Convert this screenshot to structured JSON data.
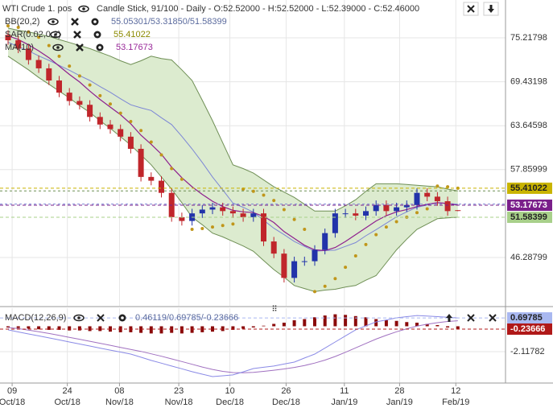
{
  "chart_data": [
    {
      "type": "candlestick",
      "title": "WTI Crude 1. pos",
      "subtitle": "Candle Stick, 91/100 - Daily - O:52.52000 - H:52.52000 - L:52.39000 - C:52.46000",
      "indicators": [
        {
          "name": "BB(20,2)",
          "label": "55.05301/53.31850/51.58399",
          "color": "#5b6b9e"
        },
        {
          "name": "SAR(0.02,0.2)",
          "label": "55.41022",
          "color": "#8c8a00"
        },
        {
          "name": "MA(10)",
          "label": "53.17673",
          "color": "#9a2a9a"
        }
      ],
      "ylim": [
        39.93,
        80.2
      ],
      "yticks": [
        46.28799,
        57.85999,
        63.64598,
        69.43198,
        75.21798
      ],
      "grid": true,
      "up_color": "#2233aa",
      "down_color": "#c0262b",
      "open": [
        75.6,
        74.9,
        73.8,
        72.3,
        71.2,
        69.6,
        68.0,
        66.9,
        66.4,
        64.8,
        63.8,
        63.2,
        62.2,
        60.6,
        56.9,
        56.4,
        54.8,
        51.6,
        51.1,
        52.1,
        52.6,
        52.9,
        52.4,
        52.1,
        51.6,
        52.1,
        48.4,
        46.8,
        43.6,
        45.8,
        45.8,
        47.3,
        49.5,
        52.1,
        52.1,
        51.8,
        52.4,
        53.2,
        52.4,
        52.9,
        53.2,
        54.8,
        54.3,
        53.7,
        52.52
      ],
      "high": [
        76.2,
        75.5,
        74.4,
        72.9,
        71.8,
        70.2,
        68.6,
        67.5,
        67.0,
        65.4,
        64.4,
        63.8,
        62.8,
        61.2,
        57.5,
        57.0,
        55.4,
        52.2,
        52.7,
        53.2,
        53.5,
        53.5,
        53.0,
        52.7,
        52.7,
        52.7,
        49.0,
        47.4,
        46.4,
        46.4,
        47.9,
        50.1,
        52.7,
        52.7,
        52.7,
        53.0,
        53.8,
        53.8,
        53.5,
        53.8,
        55.4,
        55.4,
        54.9,
        54.3,
        52.52
      ],
      "low": [
        74.3,
        73.2,
        71.7,
        70.6,
        69.0,
        67.4,
        66.3,
        65.8,
        64.2,
        63.2,
        62.6,
        61.6,
        60.0,
        56.3,
        55.8,
        54.2,
        51.0,
        50.5,
        50.5,
        51.5,
        52.0,
        51.8,
        51.5,
        51.0,
        51.0,
        47.8,
        46.2,
        43.0,
        43.0,
        45.2,
        45.2,
        46.7,
        48.9,
        51.5,
        51.2,
        51.2,
        51.8,
        51.8,
        51.8,
        52.3,
        52.6,
        53.7,
        53.1,
        51.8,
        52.39
      ],
      "close": [
        74.9,
        73.8,
        72.3,
        71.2,
        69.6,
        68.0,
        66.9,
        66.4,
        64.8,
        63.8,
        63.2,
        62.2,
        60.6,
        56.9,
        56.4,
        54.8,
        51.6,
        51.1,
        52.1,
        52.6,
        52.9,
        52.4,
        52.1,
        51.6,
        52.1,
        48.4,
        46.8,
        43.6,
        45.8,
        45.8,
        47.3,
        49.5,
        52.1,
        52.1,
        51.8,
        52.4,
        53.2,
        52.4,
        52.9,
        53.2,
        54.8,
        54.3,
        53.7,
        52.4,
        52.46
      ],
      "bb_upper": [
        76.5,
        76.2,
        76.0,
        75.7,
        75.4,
        75.0,
        74.6,
        74.2,
        73.8,
        73.3,
        72.8,
        72.2,
        71.7,
        72.2,
        72.8,
        72.5,
        72.3,
        71.0,
        69.6,
        67.0,
        64.3,
        61.4,
        58.5,
        58.0,
        57.4,
        56.5,
        55.6,
        54.9,
        54.2,
        53.3,
        52.4,
        52.4,
        52.4,
        53.1,
        53.9,
        55.0,
        56.0,
        56.0,
        56.0,
        55.9,
        55.8,
        55.7,
        55.6,
        55.3,
        55.05301
      ],
      "bb_middle": [
        74.65,
        74.05,
        73.5,
        72.85,
        72.25,
        71.6,
        70.95,
        70.25,
        69.6,
        68.8,
        68.05,
        67.2,
        66.4,
        66.0,
        65.65,
        64.7,
        63.8,
        62.25,
        60.6,
        58.8,
        56.9,
        55.2,
        53.45,
        52.9,
        52.25,
        51.2,
        50.15,
        49.3,
        48.4,
        47.75,
        47.1,
        47.2,
        47.25,
        47.75,
        48.25,
        49.15,
        49.95,
        50.8,
        51.65,
        52.3,
        52.9,
        53.2,
        53.5,
        53.4,
        53.3185
      ],
      "bb_lower": [
        72.8,
        71.9,
        71.0,
        70.0,
        69.1,
        68.2,
        67.3,
        66.3,
        65.4,
        64.3,
        63.3,
        62.2,
        61.1,
        59.8,
        58.5,
        56.9,
        55.3,
        53.5,
        51.6,
        50.6,
        49.5,
        49.0,
        48.4,
        47.8,
        47.1,
        45.9,
        44.7,
        43.7,
        42.6,
        42.2,
        41.8,
        42.0,
        42.1,
        42.4,
        42.6,
        43.3,
        43.9,
        45.6,
        47.3,
        48.7,
        50.0,
        50.7,
        51.4,
        51.5,
        51.58399
      ],
      "bb_fill": "#dcebcf",
      "bb_line": "#6f8f55",
      "bb_mid_color": "#7c86d6",
      "ma": [
        75.5,
        75.0,
        74.3,
        73.5,
        72.6,
        71.5,
        70.4,
        69.4,
        68.2,
        67.1,
        66.1,
        65.1,
        63.9,
        62.4,
        61.2,
        59.9,
        58.2,
        56.8,
        55.6,
        54.6,
        53.7,
        53.0,
        52.5,
        52.3,
        52.2,
        51.7,
        50.9,
        49.7,
        48.8,
        47.9,
        47.3,
        47.2,
        47.6,
        48.4,
        49.3,
        50.2,
        51.1,
        51.8,
        52.3,
        52.6,
        53.0,
        53.3,
        53.5,
        53.4,
        53.17673
      ],
      "ma_color": "#8e1f8e",
      "sar": [
        76.8,
        76.6,
        76.0,
        75.3,
        74.2,
        72.8,
        71.5,
        70.2,
        69.0,
        67.6,
        66.5,
        65.3,
        64.2,
        63.0,
        61.5,
        59.8,
        58.0,
        56.6,
        50.0,
        50.1,
        50.3,
        50.5,
        50.7,
        55.3,
        55.0,
        54.5,
        53.8,
        52.6,
        51.3,
        50.0,
        41.8,
        42.5,
        43.5,
        45.0,
        46.5,
        48.0,
        49.3,
        50.3,
        51.0,
        51.6,
        52.2,
        52.7,
        55.7,
        55.6,
        55.41022
      ],
      "sar_color": "#c0961a",
      "price_labels": [
        {
          "value": 55.41022,
          "color": "#c9b400",
          "text_color": "#222"
        },
        {
          "value": 53.17673,
          "color": "#7a1f8a",
          "text_color": "#fff"
        },
        {
          "value": 51.58399,
          "color": "#a8d08a",
          "text_color": "#222"
        }
      ]
    },
    {
      "type": "macd",
      "title": "MACD(12,26,9)",
      "label": "0.46119/0.69785/-0.23666",
      "ylim": [
        -4.668,
        1.508
      ],
      "yticks": [
        -2.11782
      ],
      "macd": [
        -0.3,
        -0.47,
        -0.64,
        -0.8,
        -0.97,
        -1.14,
        -1.31,
        -1.48,
        -1.65,
        -1.82,
        -1.99,
        -2.15,
        -2.32,
        -2.58,
        -2.85,
        -3.08,
        -3.32,
        -3.55,
        -3.79,
        -4.0,
        -4.2,
        -4.13,
        -4.06,
        -3.8,
        -3.53,
        -3.42,
        -3.32,
        -3.15,
        -2.99,
        -2.65,
        -2.32,
        -1.82,
        -1.31,
        -0.8,
        -0.3,
        0.03,
        0.37,
        0.53,
        0.7,
        0.8,
        0.9,
        0.85,
        0.8,
        0.75,
        0.69785
      ],
      "signal": [
        -0.1,
        -0.2,
        -0.32,
        -0.45,
        -0.6,
        -0.76,
        -0.92,
        -1.08,
        -1.25,
        -1.42,
        -1.59,
        -1.76,
        -1.93,
        -2.1,
        -2.3,
        -2.5,
        -2.72,
        -2.94,
        -3.17,
        -3.4,
        -3.6,
        -3.76,
        -3.86,
        -3.88,
        -3.84,
        -3.76,
        -3.67,
        -3.56,
        -3.43,
        -3.27,
        -3.07,
        -2.82,
        -2.52,
        -2.17,
        -1.8,
        -1.43,
        -1.07,
        -0.75,
        -0.46,
        -0.21,
        0.01,
        0.17,
        0.3,
        0.4,
        0.46119
      ],
      "histogram": [
        -0.1,
        -0.15,
        -0.2,
        -0.25,
        -0.3,
        -0.3,
        -0.35,
        -0.35,
        -0.4,
        -0.4,
        -0.45,
        -0.5,
        -0.5,
        -0.55,
        -0.6,
        -0.6,
        -0.55,
        -0.6,
        -0.55,
        -0.5,
        -0.45,
        -0.4,
        -0.3,
        -0.2,
        -0.1,
        0.05,
        0.2,
        0.3,
        0.5,
        0.6,
        0.75,
        0.9,
        1.0,
        0.95,
        0.85,
        0.75,
        0.6,
        0.5,
        0.45,
        0.35,
        0.3,
        0.2,
        0.1,
        -0.1,
        -0.23666
      ],
      "macd_color": "#8a8ae6",
      "signal_color": "#a070c0",
      "hist_color": "#8b0a0a",
      "value_labels_right": [
        {
          "value": 0.69785,
          "color": "#a9b8f0",
          "text_color": "#222"
        },
        {
          "value": -0.23666,
          "color": "#b01818",
          "text_color": "#fff"
        }
      ],
      "xticks": [
        {
          "value": 0.4,
          "label": "09"
        },
        {
          "value": 5.8,
          "label": "24"
        },
        {
          "value": 10.9,
          "label": "08"
        },
        {
          "value": 16.7,
          "label": "23"
        },
        {
          "value": 21.7,
          "label": "10"
        },
        {
          "value": 27.2,
          "label": "26"
        },
        {
          "value": 32.9,
          "label": "11"
        },
        {
          "value": 38.3,
          "label": "28"
        },
        {
          "value": 43.8,
          "label": "12"
        }
      ],
      "xtick_months": [
        "Oct/18",
        "Oct/18",
        "Nov/18",
        "Nov/18",
        "Dec/18",
        "Dec/18",
        "Jan/19",
        "Jan/19",
        "Feb/19"
      ]
    }
  ]
}
